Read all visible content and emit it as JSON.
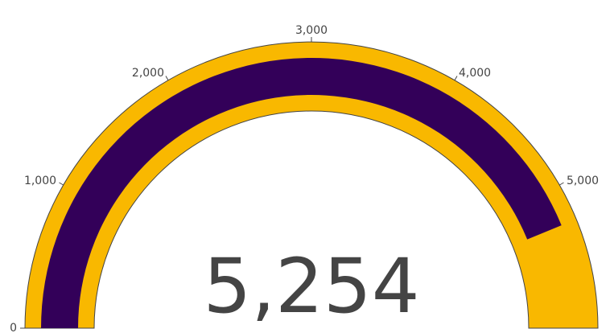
{
  "chart_data": {
    "type": "gauge",
    "value": 5254,
    "value_display": "5,254",
    "range": [
      0,
      6000
    ],
    "ticks": [
      {
        "value": 0,
        "label": "0"
      },
      {
        "value": 1000,
        "label": "1,000"
      },
      {
        "value": 2000,
        "label": "2,000"
      },
      {
        "value": 3000,
        "label": "3,000"
      },
      {
        "value": 4000,
        "label": "4,000"
      },
      {
        "value": 5000,
        "label": "5,000"
      }
    ],
    "colors": {
      "gauge_background": "#f9b800",
      "value_bar": "#330059",
      "outline": "#444444",
      "text": "#444444"
    },
    "title": "",
    "shape": "angular",
    "legend": "none"
  }
}
